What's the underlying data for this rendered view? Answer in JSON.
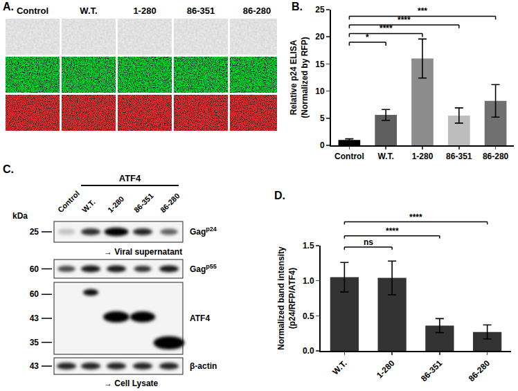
{
  "figure": {
    "panel_a": {
      "label": "A.",
      "columns": [
        "Control",
        "W.T.",
        "1-280",
        "86-351",
        "86-280"
      ]
    },
    "panel_c": {
      "label": "C.",
      "group_label": "ATF4",
      "lanes": [
        "Control",
        "W.T.",
        "1-280",
        "86-351",
        "86-280"
      ],
      "kda_label": "kDa",
      "blots": [
        {
          "name": {
            "text": "Gag",
            "sup": "p24"
          },
          "markers": [
            25
          ],
          "caption": "→ Viral supernatant"
        },
        {
          "name": {
            "text": "Gag",
            "sup": "p55"
          },
          "markers": [
            60
          ]
        },
        {
          "name": {
            "text": "ATF4"
          },
          "markers": [
            60,
            43,
            35
          ]
        },
        {
          "name": {
            "text": "β-actin"
          },
          "markers": [
            43
          ],
          "caption": "→ Cell Lysate"
        }
      ]
    }
  },
  "chart_data": [
    {
      "type": "bar",
      "title": "B.",
      "categories": [
        "Control",
        "W.T.",
        "1-280",
        "86-351",
        "86-280"
      ],
      "values": [
        1.0,
        5.6,
        16.0,
        5.5,
        8.2
      ],
      "errors": [
        0.2,
        1.0,
        3.6,
        1.4,
        3.0
      ],
      "colors": [
        "#000000",
        "#5e5e5e",
        "#8c8c8c",
        "#bdbdbd",
        "#707070"
      ],
      "y_label": [
        "Relative p24 ELISA",
        "(Normalized by RFP)"
      ],
      "ylim": [
        0,
        25
      ],
      "yticks": [
        0,
        5,
        10,
        15,
        20,
        25
      ],
      "comparisons": [
        {
          "from": "Control",
          "to": "W.T.",
          "y": 19,
          "label": "*"
        },
        {
          "from": "Control",
          "to": "1-280",
          "y": 20.6,
          "label": "****"
        },
        {
          "from": "Control",
          "to": "86-351",
          "y": 22.2,
          "label": "****"
        },
        {
          "from": "Control",
          "to": "86-280",
          "y": 23.8,
          "label": "***"
        }
      ]
    },
    {
      "type": "bar",
      "title": "D.",
      "categories": [
        "W.T.",
        "1-280",
        "86-351",
        "86-280"
      ],
      "values": [
        1.05,
        1.04,
        0.36,
        0.27
      ],
      "errors": [
        0.21,
        0.24,
        0.1,
        0.1
      ],
      "color": "#333333",
      "y_label": [
        "Normalized band intensity",
        "(p24/RFP/ATF4)"
      ],
      "ylim": [
        0,
        1.5
      ],
      "yticks": [
        {
          "value": 0,
          "label": "0.0"
        },
        {
          "value": 0.5,
          "label": "0.5"
        },
        {
          "value": 1,
          "label": "1.0"
        },
        {
          "value": 1.5,
          "label": "1.5"
        }
      ],
      "comparisons": [
        {
          "from": "W.T.",
          "to": "1-280",
          "y": 1.48,
          "label": "ns"
        },
        {
          "from": "W.T.",
          "to": "86-351",
          "y": 1.64,
          "label": "****"
        },
        {
          "from": "W.T.",
          "to": "86-280",
          "y": 1.84,
          "label": "****"
        }
      ]
    }
  ]
}
